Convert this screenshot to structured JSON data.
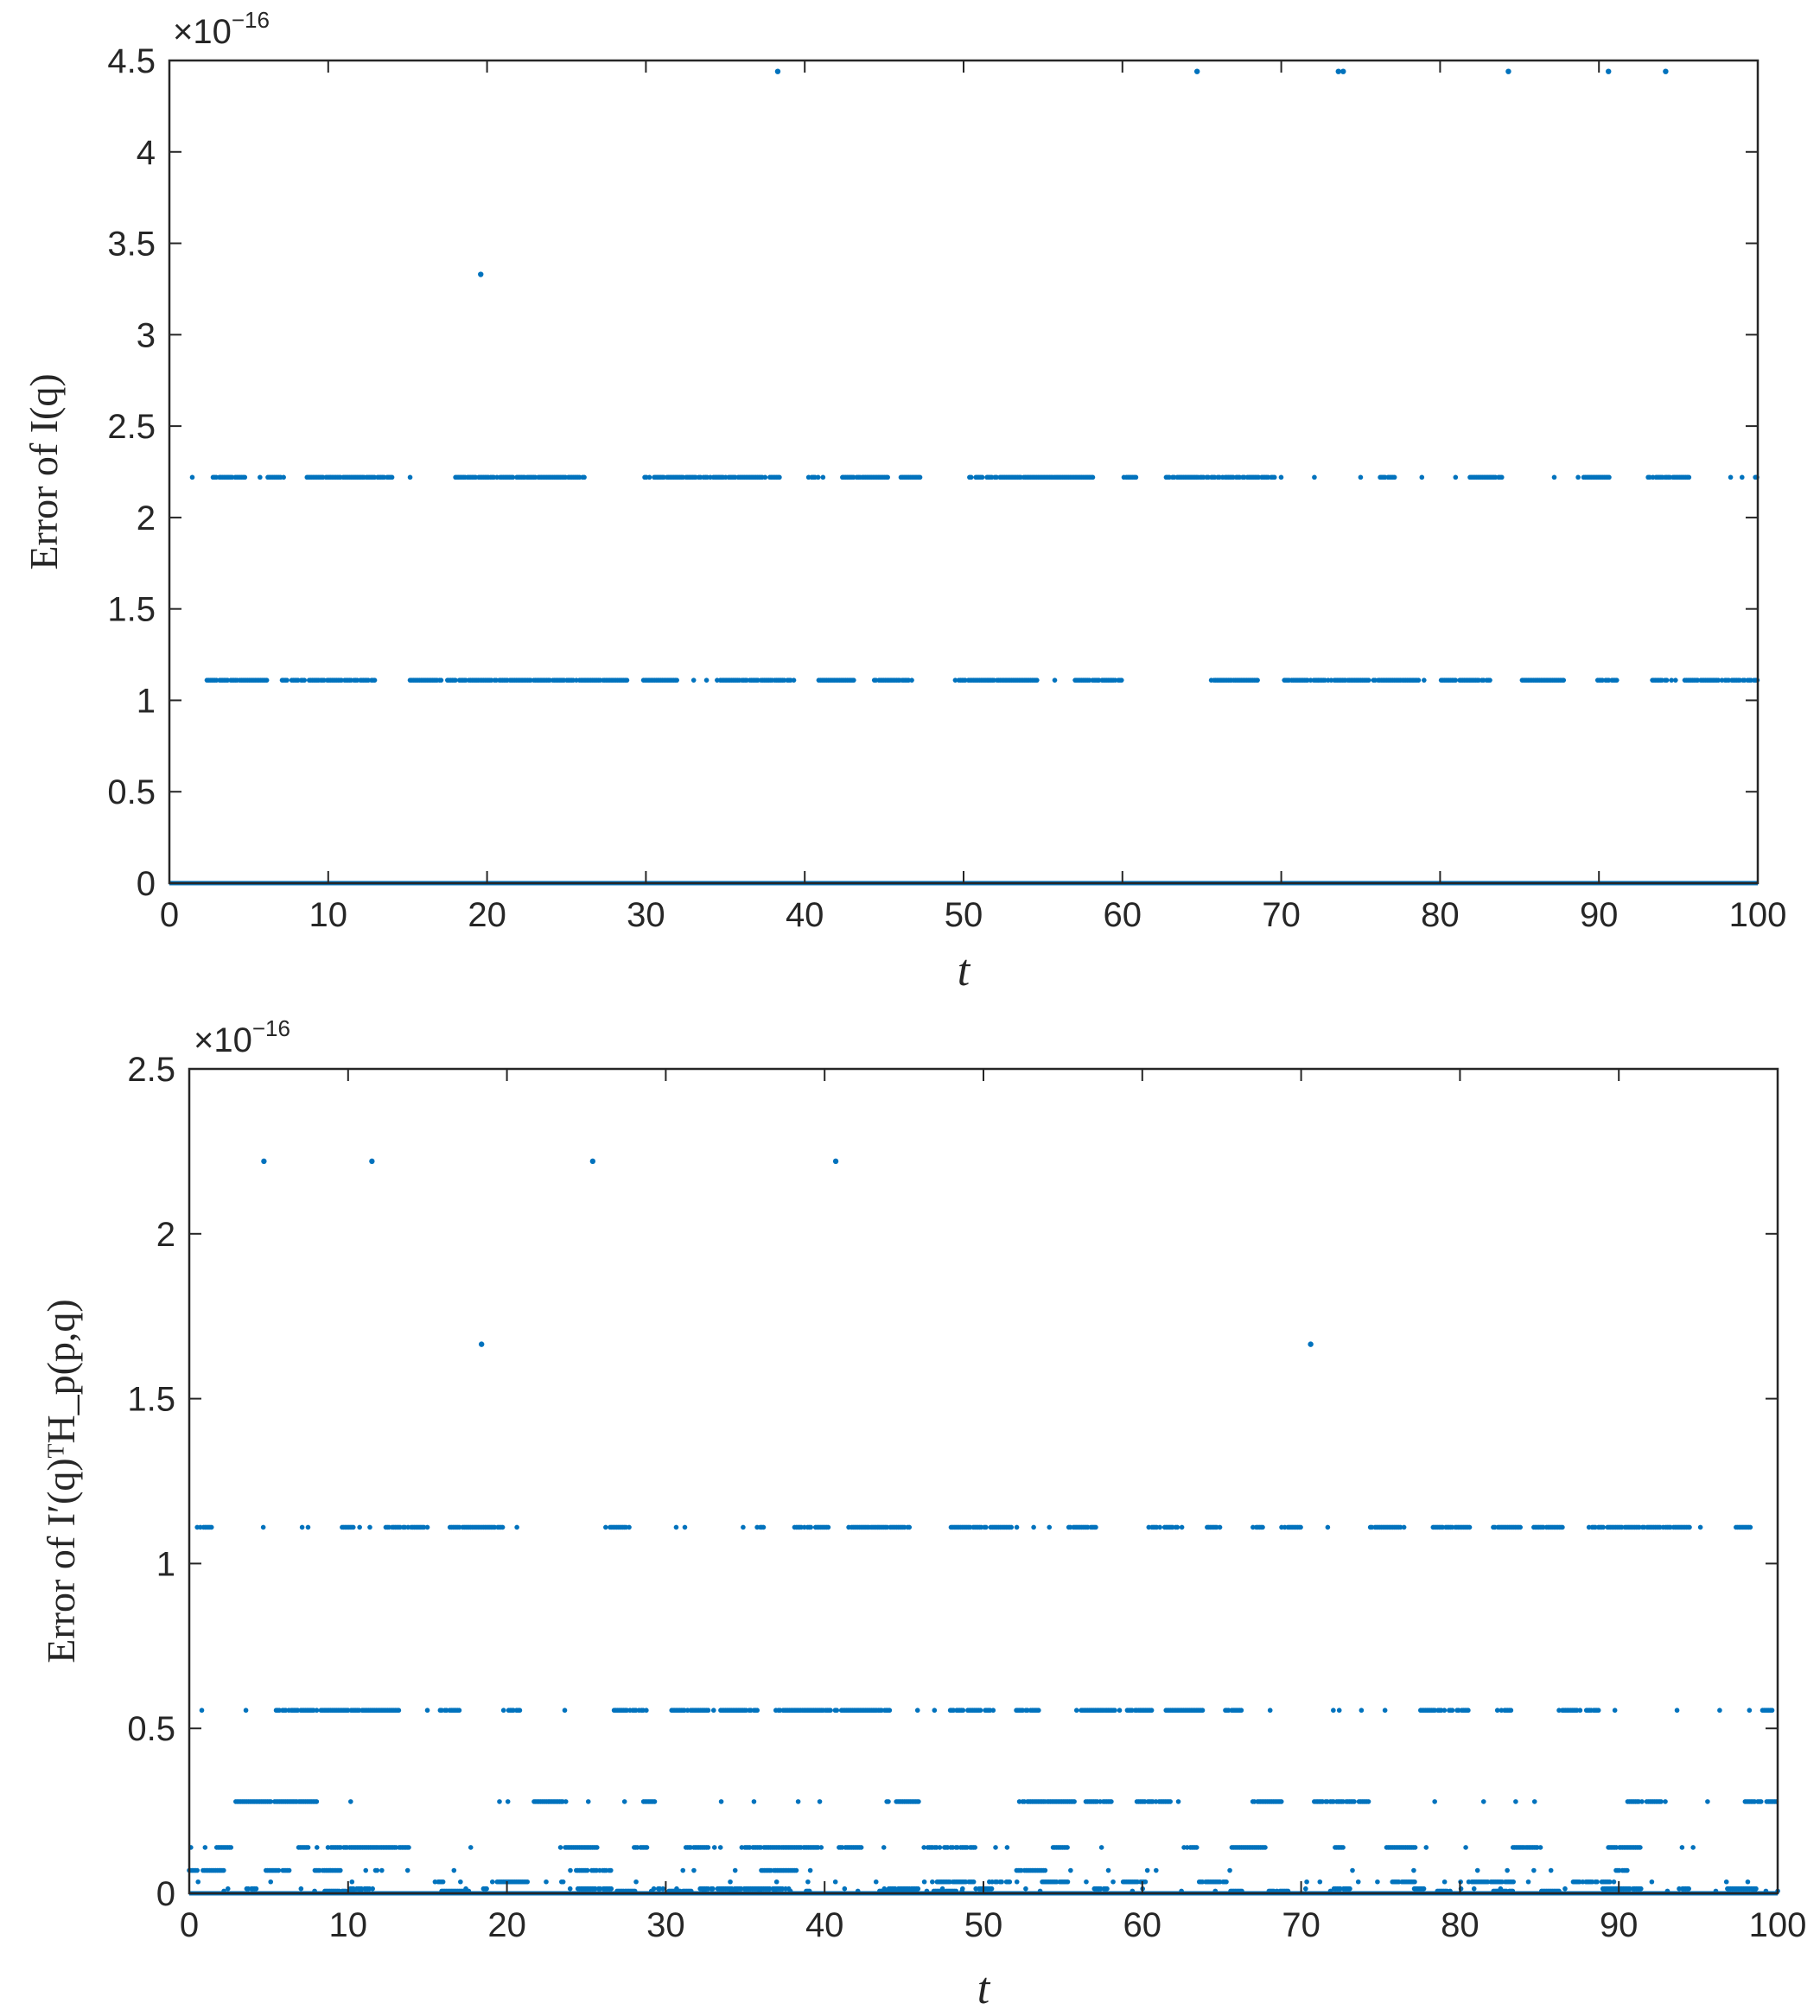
{
  "chart_data": [
    {
      "type": "scatter",
      "xlabel": "t",
      "ylabel": "Error of I(q)",
      "xlim": [
        0,
        100
      ],
      "ylim": [
        0,
        4.5
      ],
      "y_multiplier": "×10",
      "y_exponent": "−16",
      "xticks": [
        "0",
        "10",
        "20",
        "30",
        "40",
        "50",
        "60",
        "70",
        "80",
        "90",
        "100"
      ],
      "yticks": [
        "0",
        "0.5",
        "1",
        "1.5",
        "2",
        "2.5",
        "3",
        "3.5",
        "4",
        "4.5"
      ],
      "marker_color": "#0072BD",
      "grid": false,
      "series": [
        {
          "level": 0,
          "x_ranges": [
            [
              0,
              100
            ]
          ],
          "density": 1.0
        },
        {
          "level": 1.11,
          "x_ranges": [
            [
              0.5,
              100
            ]
          ],
          "density": 0.55
        },
        {
          "level": 2.22,
          "x_ranges": [
            [
              0.8,
              5
            ],
            [
              6.2,
              100
            ]
          ],
          "density": 0.45
        },
        {
          "level": 3.33,
          "x": [
            19.6
          ]
        },
        {
          "level": 4.44,
          "x": [
            38.3,
            64.7,
            73.6,
            73.9,
            84.3,
            90.6,
            94.2
          ]
        }
      ]
    },
    {
      "type": "scatter",
      "xlabel": "t",
      "ylabel": "Error of I′(q)ᵀH_p(p,q)",
      "xlim": [
        0,
        100
      ],
      "ylim": [
        0,
        2.5
      ],
      "y_multiplier": "×10",
      "y_exponent": "−16",
      "xticks": [
        "0",
        "10",
        "20",
        "30",
        "40",
        "50",
        "60",
        "70",
        "80",
        "90",
        "100"
      ],
      "yticks": [
        "0",
        "0.5",
        "1",
        "1.5",
        "2",
        "2.5"
      ],
      "marker_color": "#0072BD",
      "grid": false,
      "series": [
        {
          "level": 0,
          "x_ranges": [
            [
              0,
              100
            ]
          ],
          "density": 1.0
        },
        {
          "level": 0.0069,
          "x_ranges": [
            [
              0,
              100
            ]
          ],
          "density": 0.18
        },
        {
          "level": 0.0139,
          "x_ranges": [
            [
              0,
              100
            ]
          ],
          "density": 0.12
        },
        {
          "level": 0.0347,
          "x_ranges": [
            [
              0,
              100
            ]
          ],
          "density": 0.1
        },
        {
          "level": 0.0694,
          "x_ranges": [
            [
              0,
              100
            ]
          ],
          "density": 0.1
        },
        {
          "level": 0.139,
          "x_ranges": [
            [
              0,
              100
            ]
          ],
          "density": 0.14
        },
        {
          "level": 0.278,
          "x_ranges": [
            [
              0,
              100
            ]
          ],
          "density": 0.14
        },
        {
          "level": 0.555,
          "x_ranges": [
            [
              0.5,
              100
            ]
          ],
          "density": 0.35
        },
        {
          "level": 1.11,
          "x_ranges": [
            [
              0.5,
              100
            ]
          ],
          "density": 0.35
        },
        {
          "level": 1.665,
          "x": [
            18.4,
            70.6
          ]
        },
        {
          "level": 2.22,
          "x": [
            4.7,
            11.5,
            25.4,
            40.7
          ]
        }
      ]
    }
  ]
}
